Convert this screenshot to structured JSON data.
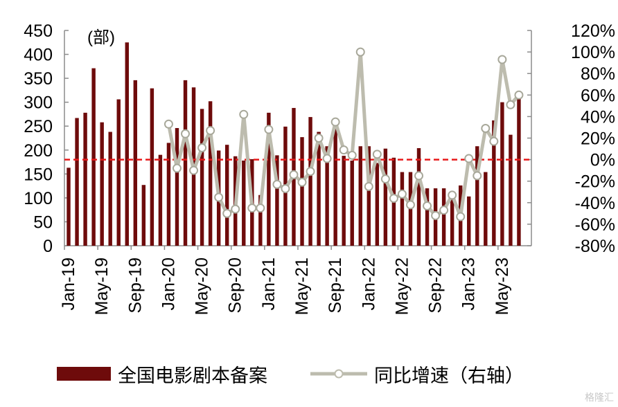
{
  "chart_data": {
    "type": "bar",
    "unit_label": "(部)",
    "left_axis": {
      "min": 0,
      "max": 450,
      "ticks": [
        "0",
        "50",
        "100",
        "150",
        "200",
        "250",
        "300",
        "350",
        "400",
        "450"
      ]
    },
    "right_axis": {
      "min": -80,
      "max": 120,
      "ticks": [
        "-80%",
        "-60%",
        "-40%",
        "-20%",
        "0%",
        "20%",
        "40%",
        "60%",
        "80%",
        "100%",
        "120%"
      ]
    },
    "x_tick_labels": [
      "Jan-19",
      "May-19",
      "Sep-19",
      "Jan-20",
      "May-20",
      "Sep-20",
      "Jan-21",
      "May-21",
      "Sep-21",
      "Jan-22",
      "May-22",
      "Sep-22",
      "Jan-23",
      "May-23"
    ],
    "categories": [
      "Jan-19",
      "Feb-19",
      "Mar-19",
      "Apr-19",
      "May-19",
      "Jun-19",
      "Jul-19",
      "Aug-19",
      "Sep-19",
      "Oct-19",
      "Nov-19",
      "Dec-19",
      "Jan-20",
      "Feb-20",
      "Mar-20",
      "Apr-20",
      "May-20",
      "Jun-20",
      "Jul-20",
      "Aug-20",
      "Sep-20",
      "Oct-20",
      "Nov-20",
      "Dec-20",
      "Jan-21",
      "Feb-21",
      "Mar-21",
      "Apr-21",
      "May-21",
      "Jun-21",
      "Jul-21",
      "Aug-21",
      "Sep-21",
      "Oct-21",
      "Nov-21",
      "Dec-21",
      "Jan-22",
      "Feb-22",
      "Mar-22",
      "Apr-22",
      "May-22",
      "Jun-22",
      "Jul-22",
      "Aug-22",
      "Sep-22",
      "Oct-22",
      "Nov-22",
      "Dec-22",
      "Jan-23",
      "Feb-23",
      "Mar-23",
      "Apr-23",
      "May-23",
      "Jun-23",
      "Jul-23",
      "Aug-23"
    ],
    "series": [
      {
        "name": "全国电影剧本备案",
        "axis": "left",
        "color": "#6e0b0b",
        "values": [
          163,
          267,
          278,
          371,
          258,
          238,
          306,
          425,
          346,
          127,
          329,
          190,
          215,
          246,
          346,
          331,
          286,
          302,
          199,
          211,
          187,
          178,
          181,
          106,
          278,
          189,
          249,
          288,
          227,
          269,
          238,
          208,
          248,
          188,
          178,
          208,
          208,
          173,
          203,
          184,
          154,
          154,
          204,
          120,
          120,
          120,
          104,
          126,
          103,
          208,
          154,
          262,
          300,
          232,
          311,
          null
        ]
      },
      {
        "name": "同比增速（右轴）",
        "axis": "right",
        "color": "#bdbcae",
        "values": [
          null,
          null,
          null,
          null,
          null,
          null,
          null,
          null,
          null,
          null,
          null,
          null,
          33,
          -8,
          24,
          -10,
          11,
          27,
          -35,
          -50,
          -46,
          42,
          -45,
          -45,
          28,
          -23,
          -27,
          -14,
          -21,
          -11,
          20,
          1,
          35,
          9,
          4,
          100,
          -25,
          5,
          -18,
          -36,
          -32,
          -42,
          -15,
          -43,
          -52,
          -47,
          -33,
          -53,
          1,
          -15,
          29,
          17,
          93,
          51,
          60,
          null
        ]
      }
    ]
  },
  "legend": {
    "bar_label": "全国电影剧本备案",
    "line_label": "同比增速（右轴）"
  },
  "watermark": "格隆汇"
}
